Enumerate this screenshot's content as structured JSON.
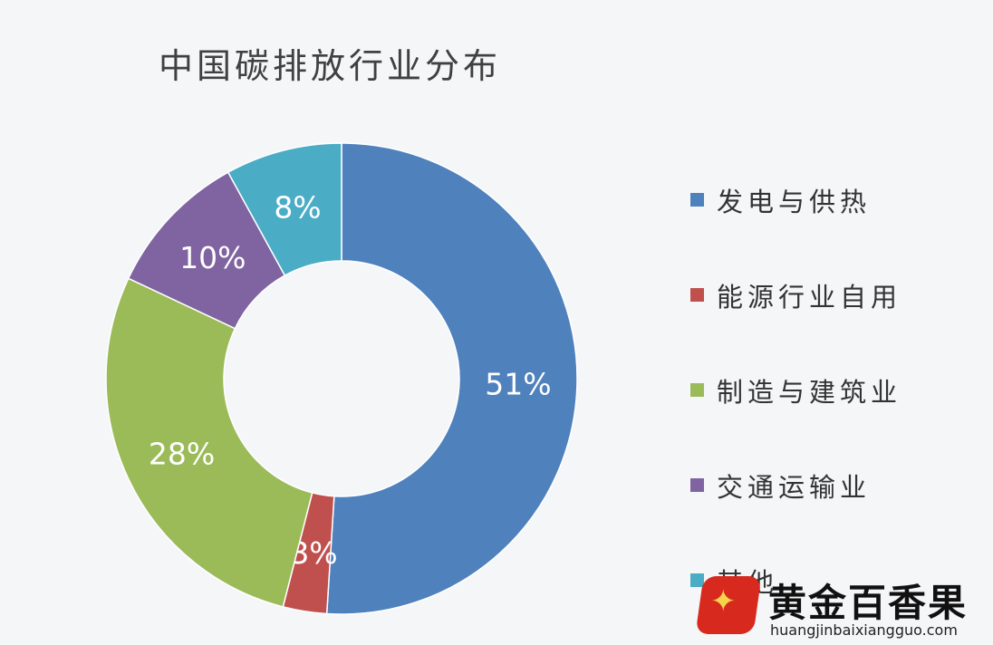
{
  "chart_data": {
    "type": "pie",
    "title": "中国碳排放行业分布",
    "categories": [
      "发电与供热",
      "能源行业自用",
      "制造与建筑业",
      "交通运输业",
      "其他"
    ],
    "values": [
      51,
      3,
      28,
      10,
      8
    ],
    "labels": [
      "51%",
      "3%",
      "28%",
      "10%",
      "8%"
    ],
    "colors": [
      "#4f81bd",
      "#c0504d",
      "#9bbb59",
      "#8064a2",
      "#4bacc6"
    ],
    "legend_position": "right",
    "donut": true
  },
  "watermark": {
    "name": "黄金百香果",
    "url": "huangjinbaixiangguo.com",
    "logo_icon": "star-icon"
  }
}
